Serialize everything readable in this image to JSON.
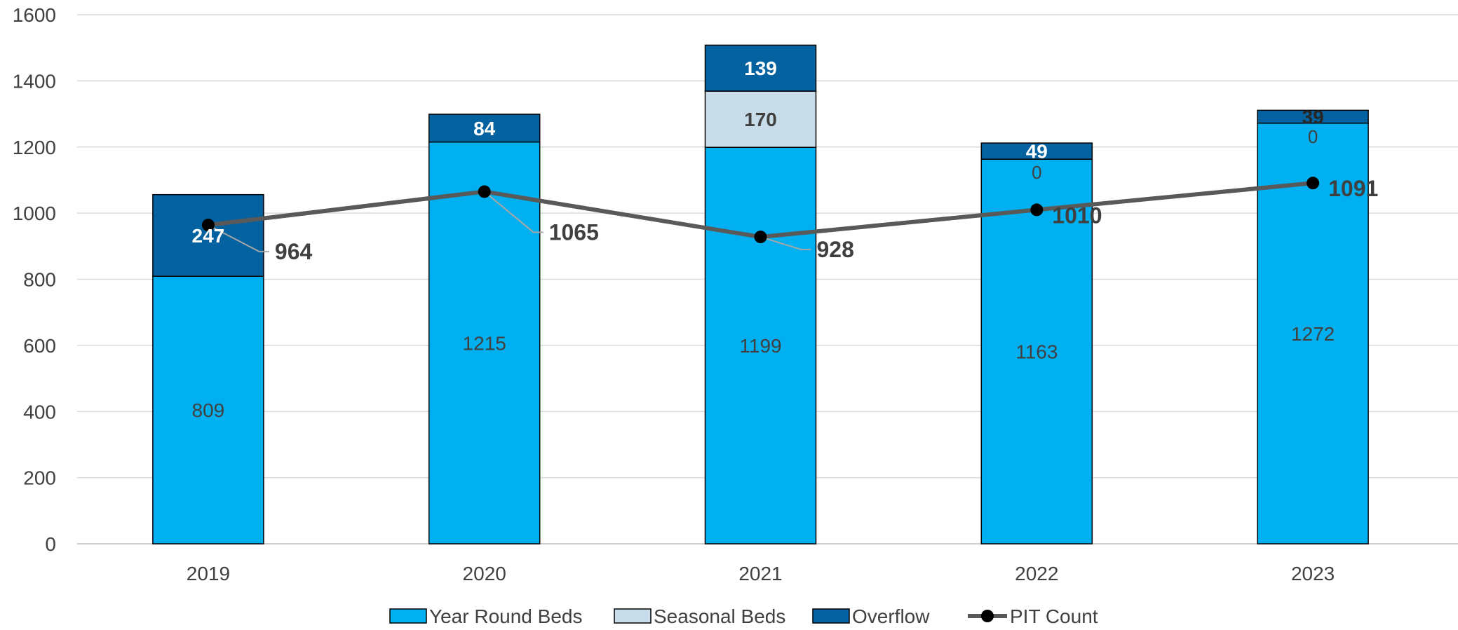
{
  "chart_data": {
    "type": "bar",
    "categories": [
      "2019",
      "2020",
      "2021",
      "2022",
      "2023"
    ],
    "ylim": [
      0,
      1600
    ],
    "yticks": [
      0,
      200,
      400,
      600,
      800,
      1000,
      1200,
      1400,
      1600
    ],
    "grid": true,
    "legend_position": "bottom",
    "series": [
      {
        "name": "Year Round Beds",
        "type": "stacked-bar",
        "color": "#00b0f0",
        "values": [
          809,
          1215,
          1199,
          1163,
          1272
        ],
        "labels": [
          "809",
          "1215",
          "1199",
          "1163",
          "1272"
        ]
      },
      {
        "name": "Seasonal Beds",
        "type": "stacked-bar",
        "color": "#c9dce9",
        "values": [
          0,
          0,
          170,
          0,
          0
        ],
        "labels": [
          "",
          "",
          "170",
          "0",
          "0"
        ]
      },
      {
        "name": "Overflow",
        "type": "stacked-bar",
        "color": "#0462a0",
        "values": [
          247,
          84,
          139,
          49,
          39
        ],
        "labels": [
          "247",
          "84",
          "139",
          "49",
          "39"
        ]
      },
      {
        "name": "PIT Count",
        "type": "line",
        "color": "#595959",
        "values": [
          964,
          1065,
          928,
          1010,
          1091
        ],
        "labels": [
          "964",
          "1065",
          "928",
          "1010",
          "1091"
        ]
      }
    ]
  }
}
